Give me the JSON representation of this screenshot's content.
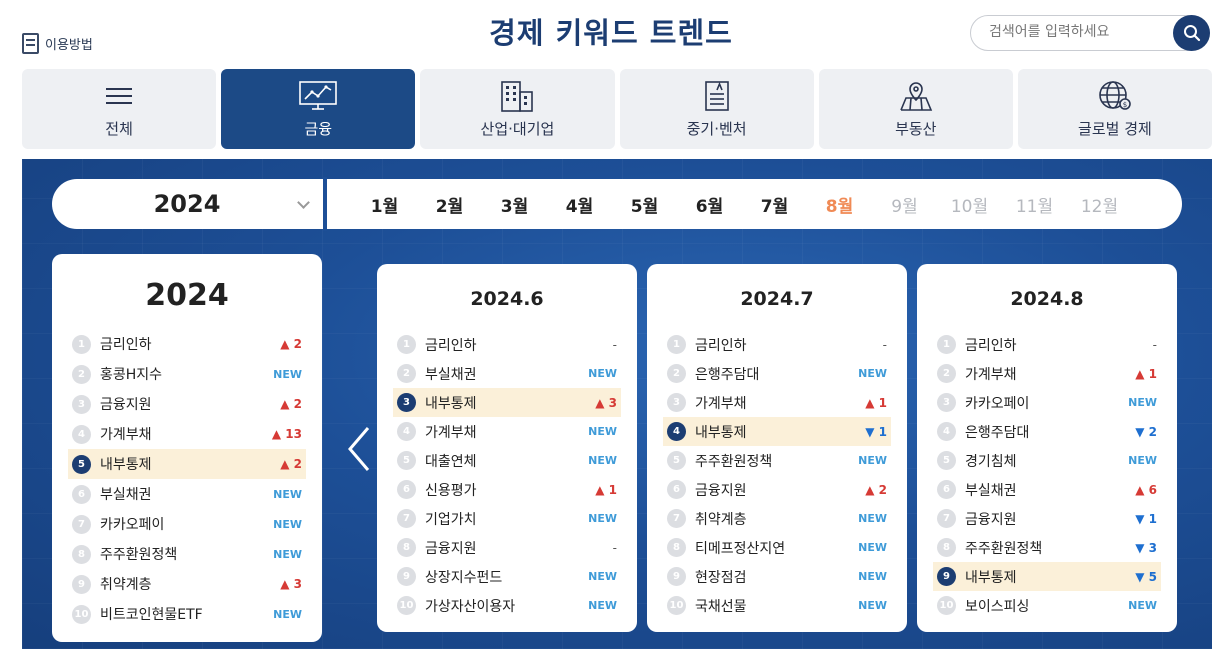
{
  "header": {
    "howto_label": "이용방법",
    "title": "경제 키워드 트렌드",
    "search_placeholder": "검색어를 입력하세요"
  },
  "tabs": [
    {
      "label": "전체",
      "icon": "menu-icon"
    },
    {
      "label": "금융",
      "icon": "chart-monitor-icon",
      "active": true
    },
    {
      "label": "산업·대기업",
      "icon": "building-icon"
    },
    {
      "label": "중기·벤처",
      "icon": "document-icon"
    },
    {
      "label": "부동산",
      "icon": "map-pin-icon"
    },
    {
      "label": "글로벌 경제",
      "icon": "globe-icon"
    }
  ],
  "datebar": {
    "year": "2024",
    "months": [
      "1월",
      "2월",
      "3월",
      "4월",
      "5월",
      "6월",
      "7월",
      "8월",
      "9월",
      "10월",
      "11월",
      "12월"
    ],
    "current_month": "8월",
    "disabled_months": [
      "9월",
      "10월",
      "11월",
      "12월"
    ]
  },
  "year_card": {
    "title": "2024",
    "items": [
      {
        "rank": "1",
        "keyword": "금리인하",
        "change": "▲ 2",
        "type": "up"
      },
      {
        "rank": "2",
        "keyword": "홍콩H지수",
        "change": "NEW",
        "type": "new"
      },
      {
        "rank": "3",
        "keyword": "금융지원",
        "change": "▲ 2",
        "type": "up"
      },
      {
        "rank": "4",
        "keyword": "가계부채",
        "change": "▲ 13",
        "type": "up"
      },
      {
        "rank": "5",
        "keyword": "내부통제",
        "change": "▲ 2",
        "type": "up",
        "highlight": true
      },
      {
        "rank": "6",
        "keyword": "부실채권",
        "change": "NEW",
        "type": "new"
      },
      {
        "rank": "7",
        "keyword": "카카오페이",
        "change": "NEW",
        "type": "new"
      },
      {
        "rank": "8",
        "keyword": "주주환원정책",
        "change": "NEW",
        "type": "new"
      },
      {
        "rank": "9",
        "keyword": "취약계층",
        "change": "▲ 3",
        "type": "up"
      },
      {
        "rank": "10",
        "keyword": "비트코인현물ETF",
        "change": "NEW",
        "type": "new"
      }
    ]
  },
  "month_cards": [
    {
      "title": "2024.6",
      "items": [
        {
          "rank": "1",
          "keyword": "금리인하",
          "change": "-",
          "type": "same"
        },
        {
          "rank": "2",
          "keyword": "부실채권",
          "change": "NEW",
          "type": "new"
        },
        {
          "rank": "3",
          "keyword": "내부통제",
          "change": "▲ 3",
          "type": "up",
          "highlight": true
        },
        {
          "rank": "4",
          "keyword": "가계부채",
          "change": "NEW",
          "type": "new"
        },
        {
          "rank": "5",
          "keyword": "대출연체",
          "change": "NEW",
          "type": "new"
        },
        {
          "rank": "6",
          "keyword": "신용평가",
          "change": "▲ 1",
          "type": "up"
        },
        {
          "rank": "7",
          "keyword": "기업가치",
          "change": "NEW",
          "type": "new"
        },
        {
          "rank": "8",
          "keyword": "금융지원",
          "change": "-",
          "type": "same"
        },
        {
          "rank": "9",
          "keyword": "상장지수펀드",
          "change": "NEW",
          "type": "new"
        },
        {
          "rank": "10",
          "keyword": "가상자산이용자",
          "change": "NEW",
          "type": "new"
        }
      ]
    },
    {
      "title": "2024.7",
      "items": [
        {
          "rank": "1",
          "keyword": "금리인하",
          "change": "-",
          "type": "same"
        },
        {
          "rank": "2",
          "keyword": "은행주담대",
          "change": "NEW",
          "type": "new"
        },
        {
          "rank": "3",
          "keyword": "가계부채",
          "change": "▲ 1",
          "type": "up"
        },
        {
          "rank": "4",
          "keyword": "내부통제",
          "change": "▼ 1",
          "type": "down",
          "highlight": true
        },
        {
          "rank": "5",
          "keyword": "주주환원정책",
          "change": "NEW",
          "type": "new"
        },
        {
          "rank": "6",
          "keyword": "금융지원",
          "change": "▲ 2",
          "type": "up"
        },
        {
          "rank": "7",
          "keyword": "취약계층",
          "change": "NEW",
          "type": "new"
        },
        {
          "rank": "8",
          "keyword": "티메프정산지연",
          "change": "NEW",
          "type": "new"
        },
        {
          "rank": "9",
          "keyword": "현장점검",
          "change": "NEW",
          "type": "new"
        },
        {
          "rank": "10",
          "keyword": "국채선물",
          "change": "NEW",
          "type": "new"
        }
      ]
    },
    {
      "title": "2024.8",
      "items": [
        {
          "rank": "1",
          "keyword": "금리인하",
          "change": "-",
          "type": "same"
        },
        {
          "rank": "2",
          "keyword": "가계부채",
          "change": "▲ 1",
          "type": "up"
        },
        {
          "rank": "3",
          "keyword": "카카오페이",
          "change": "NEW",
          "type": "new"
        },
        {
          "rank": "4",
          "keyword": "은행주담대",
          "change": "▼ 2",
          "type": "down"
        },
        {
          "rank": "5",
          "keyword": "경기침체",
          "change": "NEW",
          "type": "new"
        },
        {
          "rank": "6",
          "keyword": "부실채권",
          "change": "▲ 6",
          "type": "up"
        },
        {
          "rank": "7",
          "keyword": "금융지원",
          "change": "▼ 1",
          "type": "down"
        },
        {
          "rank": "8",
          "keyword": "주주환원정책",
          "change": "▼ 3",
          "type": "down"
        },
        {
          "rank": "9",
          "keyword": "내부통제",
          "change": "▼ 5",
          "type": "down",
          "highlight": true
        },
        {
          "rank": "10",
          "keyword": "보이스피싱",
          "change": "NEW",
          "type": "new"
        }
      ]
    }
  ]
}
